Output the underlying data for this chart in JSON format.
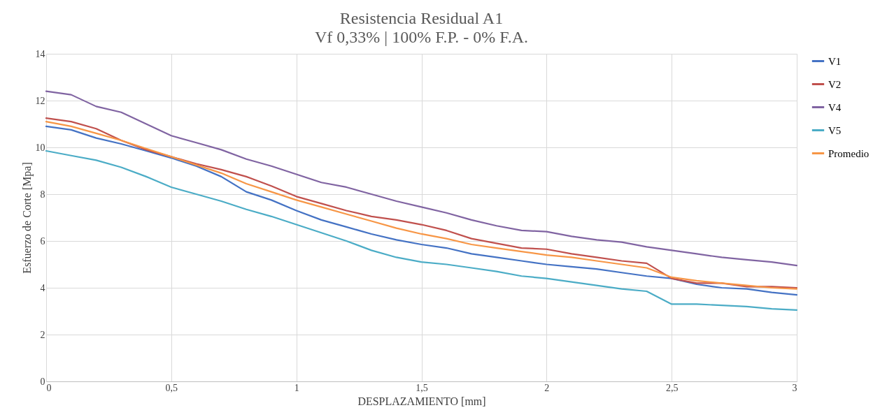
{
  "chart_data": {
    "type": "line",
    "title": "Resistencia Residual A1",
    "subtitle": "Vf  0,33% | 100% F.P. - 0% F.A.",
    "xlabel": "DESPLAZAMIENTO  [mm]",
    "ylabel": "Esfuerzo de Corte [Mpa]",
    "x": [
      0,
      0.1,
      0.2,
      0.3,
      0.4,
      0.5,
      0.6,
      0.7,
      0.8,
      0.9,
      1.0,
      1.1,
      1.2,
      1.3,
      1.4,
      1.5,
      1.6,
      1.7,
      1.8,
      1.9,
      2.0,
      2.1,
      2.2,
      2.3,
      2.4,
      2.5,
      2.6,
      2.7,
      2.8,
      2.9,
      3.0
    ],
    "series": [
      {
        "name": "V1",
        "color": "#4472c4",
        "values": [
          10.9,
          10.75,
          10.4,
          10.15,
          9.85,
          9.55,
          9.2,
          8.75,
          8.1,
          7.75,
          7.3,
          6.9,
          6.6,
          6.3,
          6.05,
          5.85,
          5.7,
          5.45,
          5.3,
          5.15,
          5.0,
          4.9,
          4.8,
          4.65,
          4.5,
          4.4,
          4.15,
          4.0,
          3.95,
          3.8,
          3.7
        ]
      },
      {
        "name": "V2",
        "color": "#c0504d",
        "values": [
          11.25,
          11.1,
          10.8,
          10.3,
          9.9,
          9.6,
          9.3,
          9.05,
          8.75,
          8.35,
          7.9,
          7.6,
          7.3,
          7.05,
          6.9,
          6.7,
          6.45,
          6.1,
          5.9,
          5.7,
          5.65,
          5.45,
          5.3,
          5.15,
          5.05,
          4.4,
          4.2,
          4.2,
          4.05,
          4.05,
          4.0
        ]
      },
      {
        "name": "V4",
        "color": "#8064a2",
        "values": [
          12.4,
          12.25,
          11.75,
          11.5,
          11.0,
          10.5,
          10.2,
          9.9,
          9.5,
          9.2,
          8.85,
          8.5,
          8.3,
          8.0,
          7.7,
          7.45,
          7.2,
          6.9,
          6.65,
          6.45,
          6.4,
          6.2,
          6.05,
          5.95,
          5.75,
          5.6,
          5.45,
          5.3,
          5.2,
          5.1,
          4.95
        ]
      },
      {
        "name": "V5",
        "color": "#4bacc6",
        "values": [
          9.85,
          9.65,
          9.45,
          9.15,
          8.75,
          8.3,
          8.0,
          7.7,
          7.35,
          7.05,
          6.7,
          6.35,
          6.0,
          5.6,
          5.3,
          5.1,
          5.0,
          4.85,
          4.7,
          4.5,
          4.4,
          4.25,
          4.1,
          3.95,
          3.85,
          3.3,
          3.3,
          3.25,
          3.2,
          3.1,
          3.05
        ]
      },
      {
        "name": "Promedio",
        "color": "#f79646",
        "values": [
          11.1,
          10.9,
          10.6,
          10.3,
          9.95,
          9.6,
          9.25,
          8.9,
          8.45,
          8.1,
          7.75,
          7.45,
          7.15,
          6.85,
          6.55,
          6.3,
          6.1,
          5.85,
          5.7,
          5.55,
          5.4,
          5.3,
          5.15,
          5.0,
          4.85,
          4.45,
          4.3,
          4.2,
          4.1,
          4.0,
          3.95
        ]
      }
    ],
    "xlim": [
      0,
      3
    ],
    "xticks": [
      0,
      {
        "value": 0.5,
        "label": "0,5"
      },
      1,
      {
        "value": 1.5,
        "label": "1,5"
      },
      2,
      {
        "value": 2.5,
        "label": "2,5"
      },
      3
    ],
    "ylim": [
      0,
      14
    ],
    "yticks": [
      0,
      2,
      4,
      6,
      8,
      10,
      12,
      14
    ],
    "grid": true,
    "legend": "right",
    "marker": "none",
    "line_style": "solid"
  }
}
